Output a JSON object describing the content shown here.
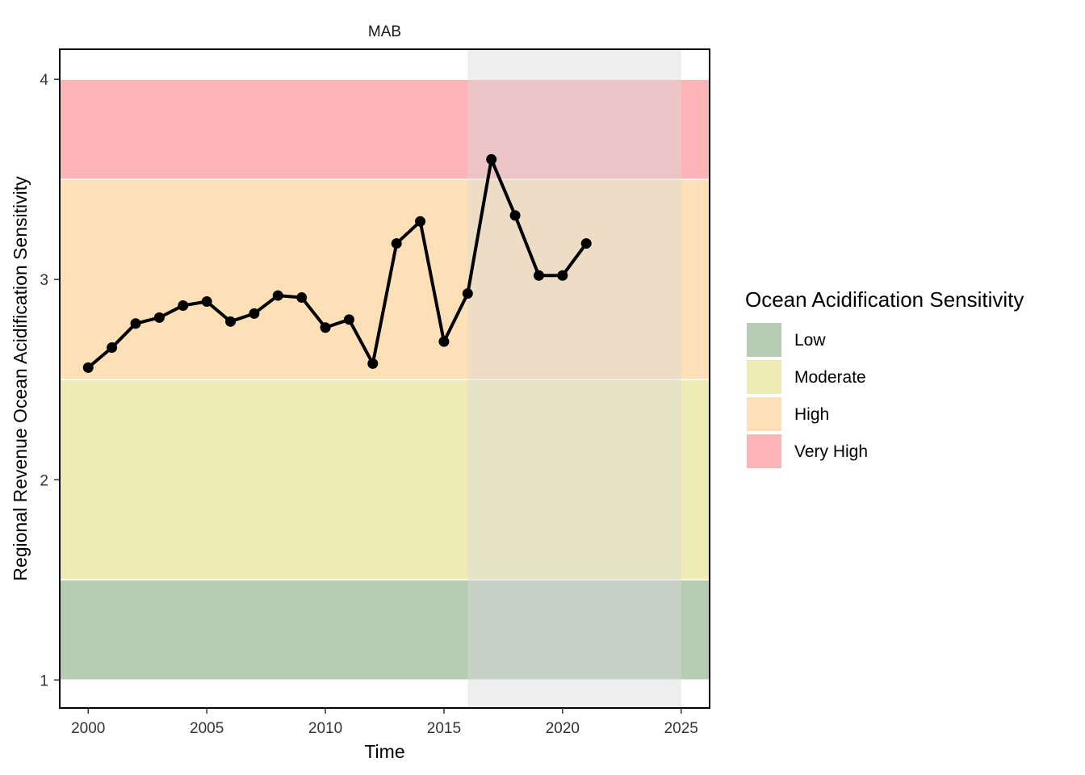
{
  "chart_data": {
    "type": "line",
    "panel_title": "MAB",
    "xlabel": "Time",
    "ylabel": "Regional Revenue Ocean Acidification Sensitivity",
    "xlim": [
      1998.8,
      2026.2
    ],
    "ylim": [
      0.86,
      4.15
    ],
    "x_ticks": [
      2000,
      2005,
      2010,
      2015,
      2020,
      2025
    ],
    "y_ticks": [
      1,
      2,
      3,
      4
    ],
    "grid": false,
    "shaded_period": [
      2016,
      2025
    ],
    "shaded_color": "#d9d9d9",
    "bands": [
      {
        "name": "Low",
        "ymin": 1.0,
        "ymax": 1.5,
        "color": "#b6cdb4"
      },
      {
        "name": "Moderate",
        "ymin": 1.5,
        "ymax": 2.5,
        "color": "#eeebb5"
      },
      {
        "name": "High",
        "ymin": 2.5,
        "ymax": 3.5,
        "color": "#fde0b8"
      },
      {
        "name": "Very High",
        "ymin": 3.5,
        "ymax": 4.0,
        "color": "#fdb4b6"
      }
    ],
    "series": [
      {
        "line_color": "#000000",
        "x": [
          2000,
          2001,
          2002,
          2003,
          2004,
          2005,
          2006,
          2007,
          2008,
          2009,
          2010,
          2011,
          2012,
          2013,
          2014,
          2015,
          2016,
          2017,
          2018,
          2019,
          2020,
          2021
        ],
        "y": [
          2.56,
          2.66,
          2.78,
          2.81,
          2.87,
          2.89,
          2.79,
          2.83,
          2.92,
          2.91,
          2.76,
          2.8,
          2.58,
          3.18,
          3.29,
          2.69,
          2.93,
          3.6,
          3.32,
          3.02,
          3.02,
          3.18
        ]
      }
    ],
    "legend": {
      "title": "Ocean Acidification Sensitivity",
      "position": "right",
      "items": [
        "Low",
        "Moderate",
        "High",
        "Very High"
      ]
    }
  }
}
